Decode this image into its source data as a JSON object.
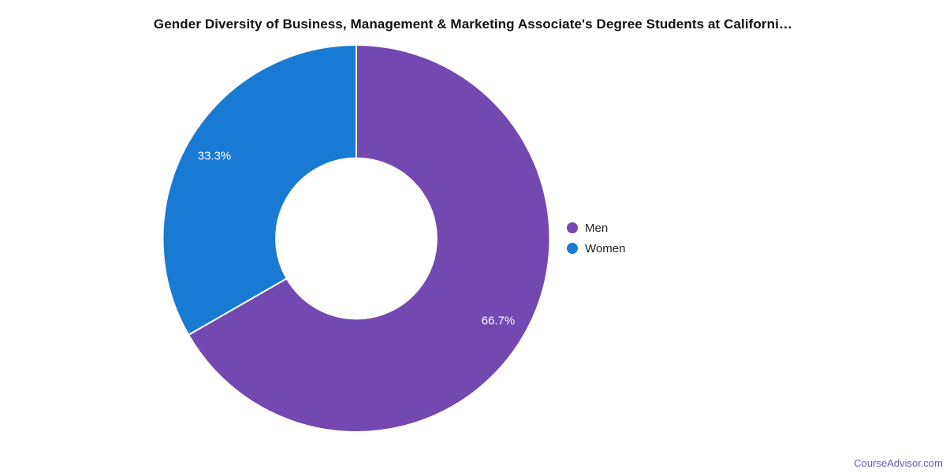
{
  "page": {
    "background": "#ffffff"
  },
  "chart_data": {
    "type": "pie",
    "donut": true,
    "title": "Gender Diversity of Business, Management & Marketing Associate's Degree Students at Californi…",
    "labels": [
      "Men",
      "Women"
    ],
    "values": [
      66.7,
      33.3
    ],
    "value_labels": [
      "66.7%",
      "33.3%"
    ],
    "colors": [
      "#7348b1",
      "#187ad2"
    ],
    "start_angle_deg": 0,
    "direction": "clockwise",
    "inner_radius_ratio": 0.415,
    "label_radius_ratio": 0.847,
    "label_color": "#ffffff",
    "separator_color": "#ffffff",
    "legend_position": "right",
    "legend": {
      "items": [
        {
          "label": "Men",
          "color": "#7348b1"
        },
        {
          "label": "Women",
          "color": "#187ad2"
        }
      ]
    }
  },
  "footer": {
    "link_text": "CourseAdvisor.com",
    "link_color": "#6a58c0"
  }
}
